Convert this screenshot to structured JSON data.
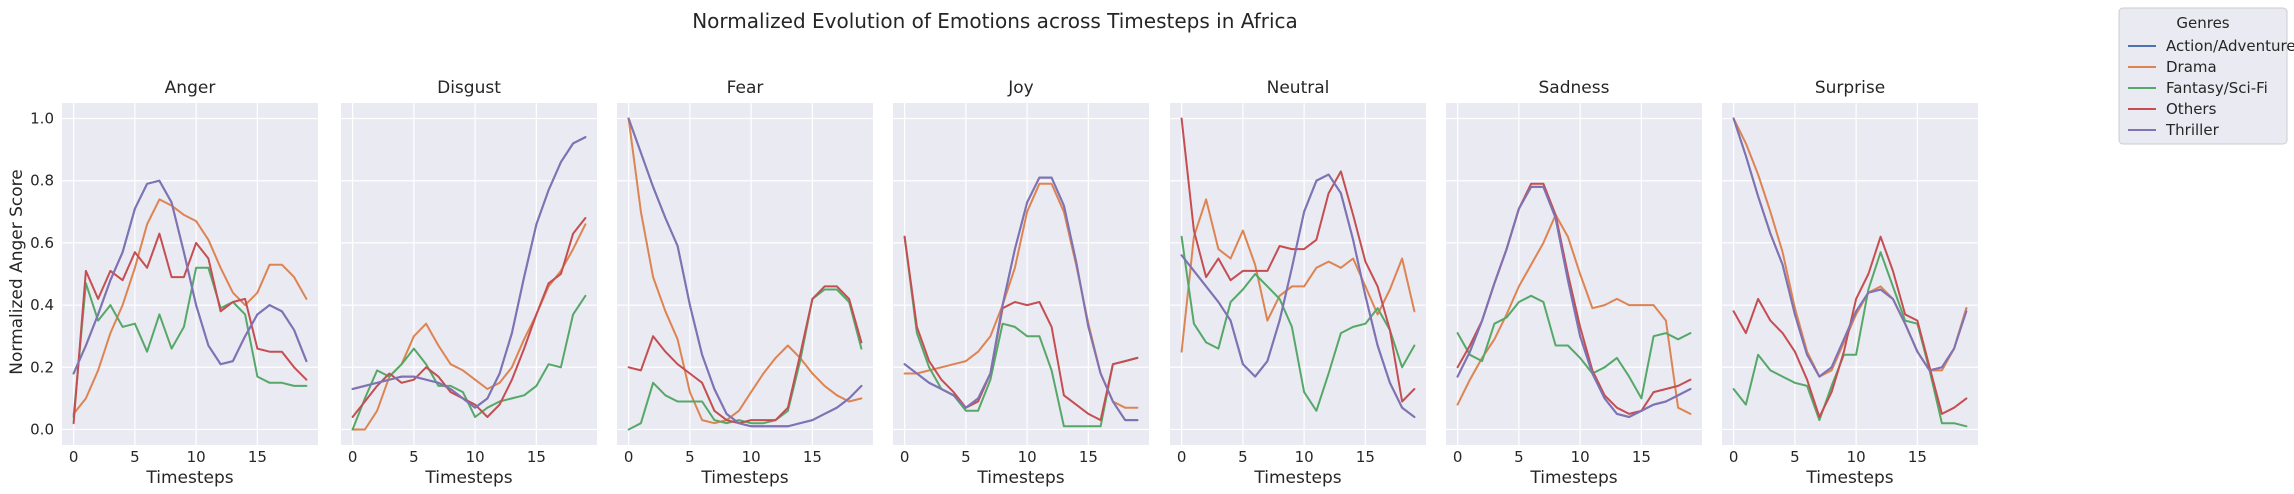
{
  "chart_data": {
    "type": "line",
    "title": "Normalized Evolution of Emotions across Timesteps in Africa",
    "ylabel": "Normalized Anger Score",
    "xlabel": "Timesteps",
    "x": [
      0,
      1,
      2,
      3,
      4,
      5,
      6,
      7,
      8,
      9,
      10,
      11,
      12,
      13,
      14,
      15,
      16,
      17,
      18,
      19
    ],
    "xlim": [
      -0.95,
      19.95
    ],
    "ylim": [
      -0.05,
      1.05
    ],
    "xticks": [
      0,
      5,
      10,
      15
    ],
    "yticks": [
      0.0,
      0.2,
      0.4,
      0.6,
      0.8,
      1.0
    ],
    "ytick_labels": [
      "0.0",
      "0.2",
      "0.4",
      "0.6",
      "0.8",
      "1.0"
    ],
    "grid": true,
    "legend": {
      "title": "Genres",
      "placement": "upper-right-outside",
      "entries": [
        "Action/Adventure",
        "Drama",
        "Fantasy/Sci-Fi",
        "Others",
        "Thriller"
      ]
    },
    "series_colors": {
      "Action/Adventure": "#4c72b0",
      "Drama": "#dd8452",
      "Fantasy/Sci-Fi": "#55a868",
      "Others": "#c44e52",
      "Thriller": "#8172b3"
    },
    "panels": [
      {
        "title": "Anger",
        "series": [
          {
            "name": "Action/Adventure",
            "values": [
              0.18,
              0.27,
              0.37,
              0.48,
              0.57,
              0.71,
              0.79,
              0.8,
              0.73,
              0.57,
              0.4,
              0.27,
              0.21,
              0.22,
              0.3,
              0.37,
              0.4,
              0.38,
              0.32,
              0.22
            ]
          },
          {
            "name": "Drama",
            "values": [
              0.05,
              0.1,
              0.19,
              0.31,
              0.4,
              0.52,
              0.66,
              0.74,
              0.72,
              0.69,
              0.67,
              0.61,
              0.52,
              0.44,
              0.4,
              0.44,
              0.53,
              0.53,
              0.49,
              0.42
            ]
          },
          {
            "name": "Fantasy/Sci-Fi",
            "values": [
              0.04,
              0.47,
              0.35,
              0.4,
              0.33,
              0.34,
              0.25,
              0.37,
              0.26,
              0.33,
              0.52,
              0.52,
              0.39,
              0.41,
              0.37,
              0.17,
              0.15,
              0.15,
              0.14,
              0.14
            ]
          },
          {
            "name": "Others",
            "values": [
              0.02,
              0.51,
              0.42,
              0.51,
              0.48,
              0.57,
              0.52,
              0.63,
              0.49,
              0.49,
              0.6,
              0.55,
              0.38,
              0.41,
              0.42,
              0.26,
              0.25,
              0.25,
              0.2,
              0.16
            ]
          },
          {
            "name": "Thriller",
            "values": [
              0.18,
              0.27,
              0.37,
              0.48,
              0.57,
              0.71,
              0.79,
              0.8,
              0.73,
              0.57,
              0.4,
              0.27,
              0.21,
              0.22,
              0.3,
              0.37,
              0.4,
              0.38,
              0.32,
              0.22
            ]
          }
        ]
      },
      {
        "title": "Disgust",
        "series": [
          {
            "name": "Action/Adventure",
            "values": [
              0.13,
              0.14,
              0.15,
              0.16,
              0.17,
              0.17,
              0.16,
              0.15,
              0.13,
              0.1,
              0.07,
              0.1,
              0.18,
              0.31,
              0.49,
              0.66,
              0.77,
              0.86,
              0.92,
              0.94
            ]
          },
          {
            "name": "Drama",
            "values": [
              0.0,
              0.0,
              0.06,
              0.17,
              0.21,
              0.3,
              0.34,
              0.27,
              0.21,
              0.19,
              0.16,
              0.13,
              0.15,
              0.2,
              0.29,
              0.37,
              0.46,
              0.51,
              0.58,
              0.66
            ]
          },
          {
            "name": "Fantasy/Sci-Fi",
            "values": [
              0.0,
              0.1,
              0.19,
              0.17,
              0.21,
              0.26,
              0.21,
              0.14,
              0.14,
              0.12,
              0.04,
              0.07,
              0.09,
              0.1,
              0.11,
              0.14,
              0.21,
              0.2,
              0.37,
              0.43
            ]
          },
          {
            "name": "Others",
            "values": [
              0.04,
              0.09,
              0.14,
              0.18,
              0.15,
              0.16,
              0.2,
              0.17,
              0.12,
              0.1,
              0.08,
              0.04,
              0.08,
              0.16,
              0.26,
              0.37,
              0.47,
              0.5,
              0.63,
              0.68
            ]
          },
          {
            "name": "Thriller",
            "values": [
              0.13,
              0.14,
              0.15,
              0.16,
              0.17,
              0.17,
              0.16,
              0.15,
              0.13,
              0.1,
              0.07,
              0.1,
              0.18,
              0.31,
              0.49,
              0.66,
              0.77,
              0.86,
              0.92,
              0.94
            ]
          }
        ]
      },
      {
        "title": "Fear",
        "series": [
          {
            "name": "Action/Adventure",
            "values": [
              1.0,
              0.89,
              0.78,
              0.68,
              0.59,
              0.4,
              0.24,
              0.13,
              0.05,
              0.02,
              0.01,
              0.01,
              0.01,
              0.01,
              0.02,
              0.03,
              0.05,
              0.07,
              0.1,
              0.14
            ]
          },
          {
            "name": "Drama",
            "values": [
              1.0,
              0.7,
              0.49,
              0.38,
              0.29,
              0.12,
              0.03,
              0.02,
              0.03,
              0.06,
              0.12,
              0.18,
              0.23,
              0.27,
              0.23,
              0.18,
              0.14,
              0.11,
              0.09,
              0.1
            ]
          },
          {
            "name": "Fantasy/Sci-Fi",
            "values": [
              0.0,
              0.02,
              0.15,
              0.11,
              0.09,
              0.09,
              0.09,
              0.03,
              0.02,
              0.03,
              0.02,
              0.02,
              0.03,
              0.06,
              0.22,
              0.42,
              0.45,
              0.45,
              0.41,
              0.26
            ]
          },
          {
            "name": "Others",
            "values": [
              0.2,
              0.19,
              0.3,
              0.25,
              0.21,
              0.18,
              0.15,
              0.06,
              0.03,
              0.02,
              0.03,
              0.03,
              0.03,
              0.07,
              0.24,
              0.42,
              0.46,
              0.46,
              0.42,
              0.28
            ]
          },
          {
            "name": "Thriller",
            "values": [
              1.0,
              0.89,
              0.78,
              0.68,
              0.59,
              0.4,
              0.24,
              0.13,
              0.05,
              0.02,
              0.01,
              0.01,
              0.01,
              0.01,
              0.02,
              0.03,
              0.05,
              0.07,
              0.1,
              0.14
            ]
          }
        ]
      },
      {
        "title": "Joy",
        "series": [
          {
            "name": "Action/Adventure",
            "values": [
              0.21,
              0.18,
              0.15,
              0.13,
              0.11,
              0.07,
              0.1,
              0.18,
              0.4,
              0.58,
              0.73,
              0.81,
              0.81,
              0.72,
              0.54,
              0.33,
              0.18,
              0.09,
              0.03,
              0.03
            ]
          },
          {
            "name": "Drama",
            "values": [
              0.18,
              0.18,
              0.19,
              0.2,
              0.21,
              0.22,
              0.25,
              0.3,
              0.4,
              0.52,
              0.7,
              0.79,
              0.79,
              0.7,
              0.53,
              0.34,
              0.18,
              0.09,
              0.07,
              0.07
            ]
          },
          {
            "name": "Fantasy/Sci-Fi",
            "values": [
              0.62,
              0.31,
              0.2,
              0.13,
              0.11,
              0.06,
              0.06,
              0.16,
              0.34,
              0.33,
              0.3,
              0.3,
              0.19,
              0.01,
              0.01,
              0.01,
              0.01,
              0.21,
              0.22,
              0.23
            ]
          },
          {
            "name": "Others",
            "values": [
              0.62,
              0.33,
              0.22,
              0.16,
              0.12,
              0.07,
              0.09,
              0.18,
              0.39,
              0.41,
              0.4,
              0.41,
              0.33,
              0.11,
              0.08,
              0.05,
              0.03,
              0.21,
              0.22,
              0.23
            ]
          },
          {
            "name": "Thriller",
            "values": [
              0.21,
              0.18,
              0.15,
              0.13,
              0.11,
              0.07,
              0.1,
              0.18,
              0.4,
              0.58,
              0.73,
              0.81,
              0.81,
              0.72,
              0.54,
              0.33,
              0.18,
              0.09,
              0.03,
              0.03
            ]
          }
        ]
      },
      {
        "title": "Neutral",
        "series": [
          {
            "name": "Action/Adventure",
            "values": [
              0.56,
              0.51,
              0.46,
              0.41,
              0.35,
              0.21,
              0.17,
              0.22,
              0.35,
              0.52,
              0.7,
              0.8,
              0.82,
              0.76,
              0.61,
              0.43,
              0.27,
              0.15,
              0.07,
              0.04
            ]
          },
          {
            "name": "Drama",
            "values": [
              0.25,
              0.62,
              0.74,
              0.58,
              0.55,
              0.64,
              0.53,
              0.35,
              0.43,
              0.46,
              0.46,
              0.52,
              0.54,
              0.52,
              0.55,
              0.46,
              0.37,
              0.45,
              0.55,
              0.38
            ]
          },
          {
            "name": "Fantasy/Sci-Fi",
            "values": [
              0.62,
              0.34,
              0.28,
              0.26,
              0.41,
              0.45,
              0.5,
              0.46,
              0.42,
              0.33,
              0.12,
              0.06,
              0.18,
              0.31,
              0.33,
              0.34,
              0.39,
              0.32,
              0.2,
              0.27
            ]
          },
          {
            "name": "Others",
            "values": [
              1.0,
              0.64,
              0.49,
              0.55,
              0.48,
              0.51,
              0.51,
              0.51,
              0.59,
              0.58,
              0.58,
              0.61,
              0.76,
              0.83,
              0.69,
              0.54,
              0.46,
              0.32,
              0.09,
              0.13
            ]
          },
          {
            "name": "Thriller",
            "values": [
              0.56,
              0.51,
              0.46,
              0.41,
              0.35,
              0.21,
              0.17,
              0.22,
              0.35,
              0.52,
              0.7,
              0.8,
              0.82,
              0.76,
              0.61,
              0.43,
              0.27,
              0.15,
              0.07,
              0.04
            ]
          }
        ]
      },
      {
        "title": "Sadness",
        "series": [
          {
            "name": "Action/Adventure",
            "values": [
              0.17,
              0.25,
              0.35,
              0.47,
              0.58,
              0.71,
              0.78,
              0.78,
              0.68,
              0.48,
              0.3,
              0.18,
              0.1,
              0.05,
              0.04,
              0.06,
              0.08,
              0.09,
              0.11,
              0.13
            ]
          },
          {
            "name": "Drama",
            "values": [
              0.08,
              0.16,
              0.23,
              0.29,
              0.37,
              0.46,
              0.53,
              0.6,
              0.69,
              0.62,
              0.5,
              0.39,
              0.4,
              0.42,
              0.4,
              0.4,
              0.4,
              0.35,
              0.07,
              0.05
            ]
          },
          {
            "name": "Fantasy/Sci-Fi",
            "values": [
              0.31,
              0.24,
              0.22,
              0.34,
              0.36,
              0.41,
              0.43,
              0.41,
              0.27,
              0.27,
              0.23,
              0.18,
              0.2,
              0.23,
              0.17,
              0.1,
              0.3,
              0.31,
              0.29,
              0.31
            ]
          },
          {
            "name": "Others",
            "values": [
              0.2,
              0.27,
              0.35,
              0.47,
              0.58,
              0.71,
              0.79,
              0.79,
              0.69,
              0.5,
              0.33,
              0.19,
              0.11,
              0.07,
              0.05,
              0.06,
              0.12,
              0.13,
              0.14,
              0.16
            ]
          },
          {
            "name": "Thriller",
            "values": [
              0.17,
              0.25,
              0.35,
              0.47,
              0.58,
              0.71,
              0.78,
              0.78,
              0.68,
              0.48,
              0.3,
              0.18,
              0.1,
              0.05,
              0.04,
              0.06,
              0.08,
              0.09,
              0.11,
              0.13
            ]
          }
        ]
      },
      {
        "title": "Surprise",
        "series": [
          {
            "name": "Action/Adventure",
            "values": [
              1.0,
              0.88,
              0.75,
              0.63,
              0.53,
              0.37,
              0.24,
              0.17,
              0.2,
              0.29,
              0.38,
              0.44,
              0.45,
              0.42,
              0.34,
              0.25,
              0.19,
              0.2,
              0.26,
              0.39
            ]
          },
          {
            "name": "Drama",
            "values": [
              1.0,
              0.92,
              0.82,
              0.7,
              0.57,
              0.39,
              0.25,
              0.17,
              0.19,
              0.28,
              0.37,
              0.44,
              0.46,
              0.42,
              0.34,
              0.25,
              0.19,
              0.19,
              0.26,
              0.39
            ]
          },
          {
            "name": "Fantasy/Sci-Fi",
            "values": [
              0.13,
              0.08,
              0.24,
              0.19,
              0.17,
              0.15,
              0.14,
              0.03,
              0.14,
              0.24,
              0.24,
              0.45,
              0.57,
              0.46,
              0.35,
              0.34,
              0.19,
              0.02,
              0.02,
              0.01
            ]
          },
          {
            "name": "Others",
            "values": [
              0.38,
              0.31,
              0.42,
              0.35,
              0.31,
              0.25,
              0.16,
              0.04,
              0.12,
              0.25,
              0.42,
              0.5,
              0.62,
              0.51,
              0.37,
              0.35,
              0.2,
              0.05,
              0.07,
              0.1
            ]
          },
          {
            "name": "Thriller",
            "values": [
              1.0,
              0.88,
              0.75,
              0.63,
              0.53,
              0.37,
              0.24,
              0.17,
              0.2,
              0.29,
              0.38,
              0.44,
              0.45,
              0.42,
              0.34,
              0.25,
              0.19,
              0.2,
              0.26,
              0.38
            ]
          }
        ]
      }
    ]
  }
}
